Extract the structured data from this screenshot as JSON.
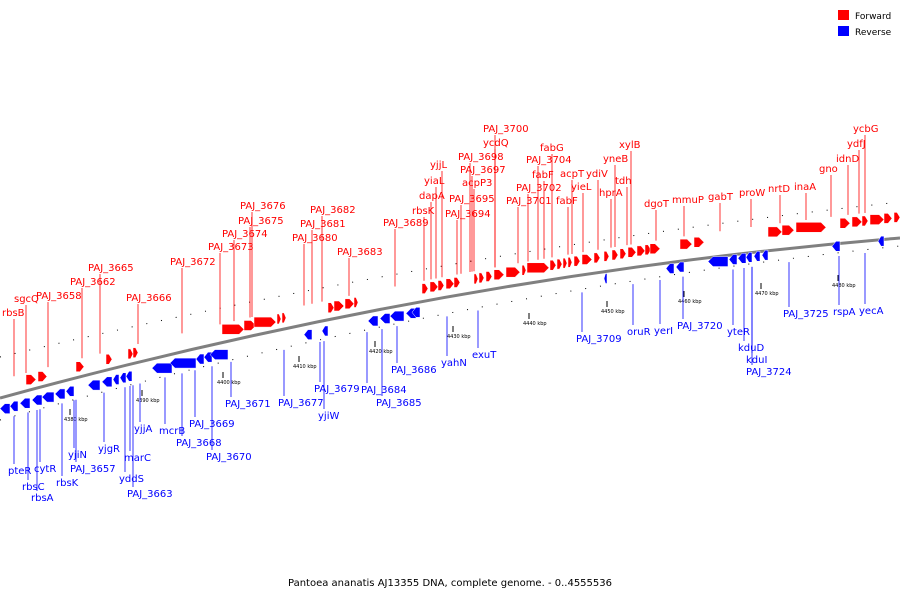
{
  "title": "Pantoea ananatis AJ13355 DNA, complete genome. - 0..4555536",
  "colors": {
    "forward": "#ff0000",
    "reverse": "#0000ff",
    "axis": "#808080"
  },
  "legend": [
    {
      "label": "Forward",
      "strand": "forward"
    },
    {
      "label": "Reverse",
      "strand": "reverse"
    }
  ],
  "ticks": [
    "4380 kbp",
    "4390 kbp",
    "4400 kbp",
    "4410 kbp",
    "4420 kbp",
    "4430 kbp",
    "4440 kbp",
    "4450 kbp",
    "4460 kbp",
    "4470 kbp",
    "4480 kbp"
  ],
  "forward_labels": [
    "rbsB",
    "sgcQ",
    "PAJ_3658",
    "PAJ_3662",
    "PAJ_3665",
    "PAJ_3666",
    "PAJ_3672",
    "PAJ_3673",
    "PAJ_3674",
    "PAJ_3675",
    "PAJ_3676",
    "PAJ_3680",
    "PAJ_3681",
    "PAJ_3682",
    "PAJ_3683",
    "PAJ_3689",
    "rbsK",
    "dapA",
    "yiaL",
    "yjjL",
    "PAJ_3694",
    "PAJ_3695",
    "acpP3",
    "PAJ_3697",
    "PAJ_3698",
    "ycdQ",
    "PAJ_3700",
    "PAJ_3701",
    "PAJ_3702",
    "fabF",
    "PAJ_3704",
    "fabG",
    "fabF",
    "acpT",
    "yieL",
    "ydiV",
    "hprA",
    "yneB",
    "tdh",
    "xylB",
    "dgoT",
    "mmuP",
    "gabT",
    "proW",
    "nrtD",
    "inaA",
    "gno",
    "idnD",
    "ydfJ",
    "ycbG"
  ],
  "reverse_labels": [
    "pteR",
    "rbsC",
    "rbsA",
    "cytR",
    "rbsK",
    "yjiN",
    "PAJ_3657",
    "yjgR",
    "yddS",
    "marC",
    "PAJ_3663",
    "yjjA",
    "mcrB",
    "PAJ_3668",
    "PAJ_3669",
    "PAJ_3670",
    "PAJ_3671",
    "PAJ_3677",
    "yjiW",
    "PAJ_3679",
    "PAJ_3684",
    "PAJ_3685",
    "PAJ_3686",
    "yahN",
    "exuT",
    "PAJ_3709",
    "oruR",
    "yerI",
    "PAJ_3720",
    "yteR",
    "kduD",
    "kduI",
    "PAJ_3724",
    "PAJ_3725",
    "rspA",
    "yecA"
  ]
}
